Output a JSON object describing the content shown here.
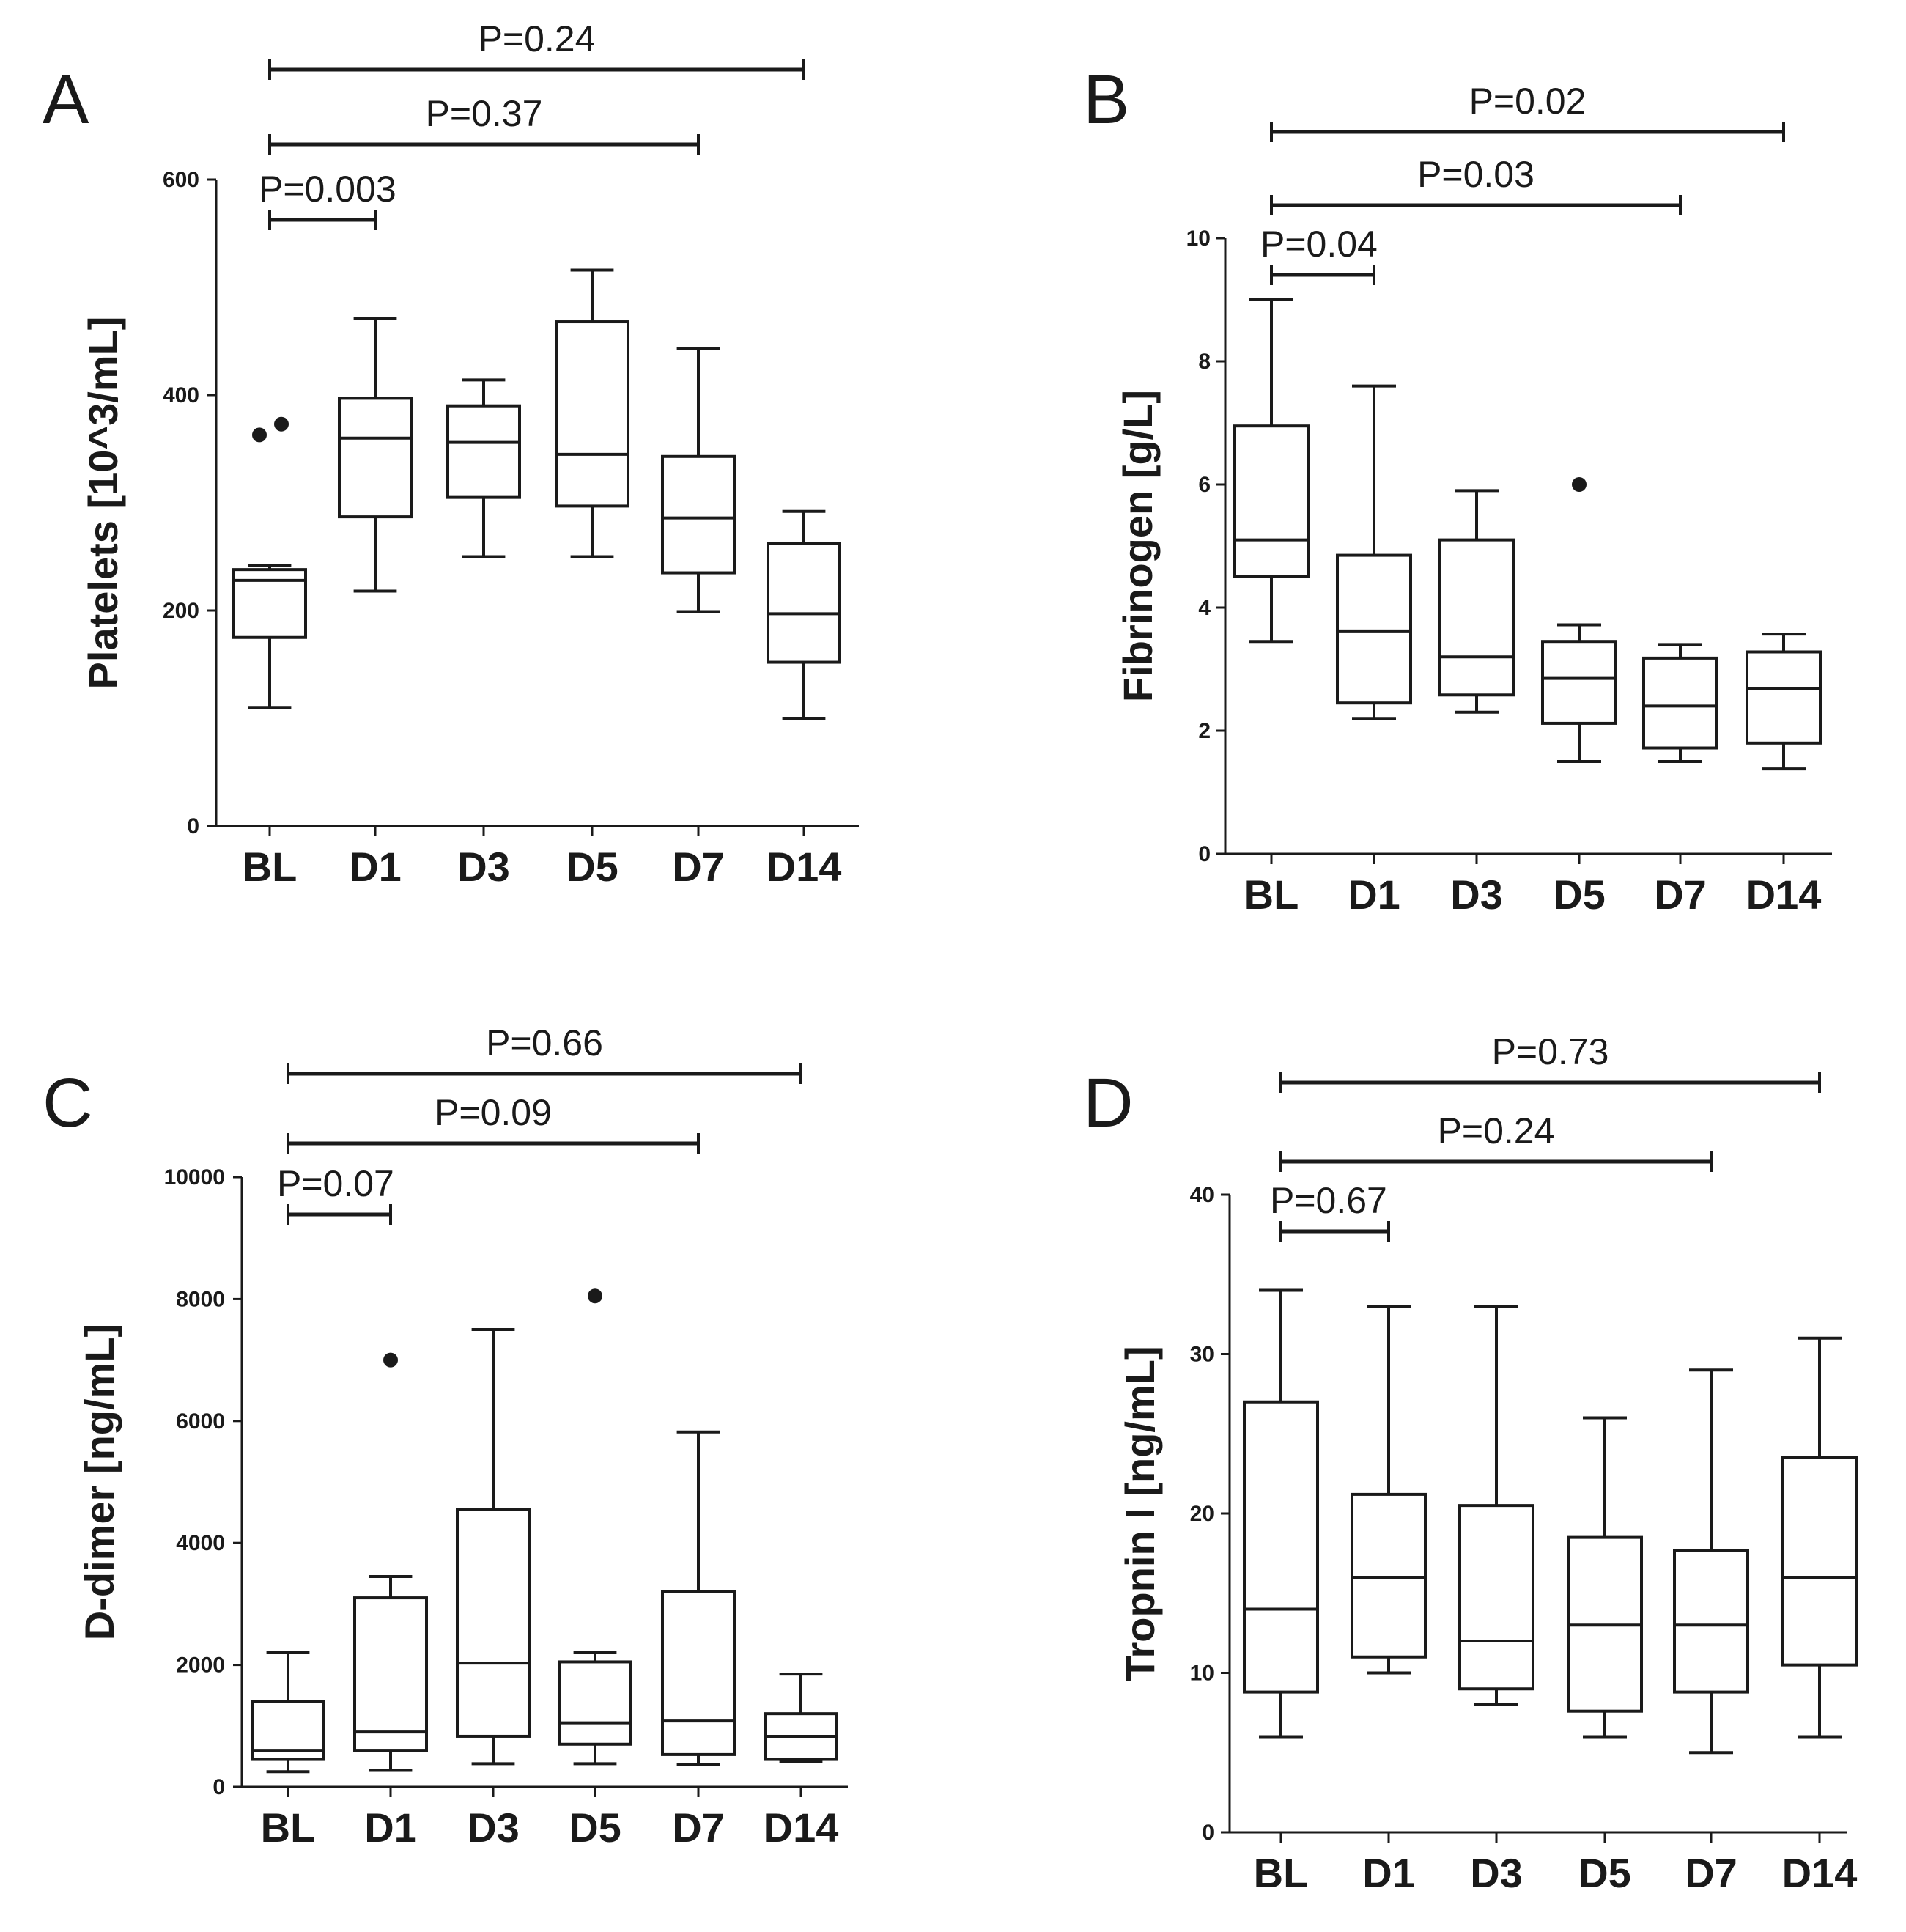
{
  "chart_data": [
    {
      "panel": "A",
      "type": "box",
      "ylabel": "Platelets [10^3/mL]",
      "ylim": [
        0,
        600
      ],
      "yticks": [
        0,
        200,
        400,
        600
      ],
      "categories": [
        "BL",
        "D1",
        "D3",
        "D5",
        "D7",
        "D14"
      ],
      "boxes": [
        {
          "min": 110,
          "q1": 175,
          "median": 228,
          "q3": 238,
          "max": 242,
          "outliers": [
            363,
            373
          ]
        },
        {
          "min": 218,
          "q1": 287,
          "median": 360,
          "q3": 397,
          "max": 471,
          "outliers": []
        },
        {
          "min": 250,
          "q1": 305,
          "median": 356,
          "q3": 390,
          "max": 414,
          "outliers": []
        },
        {
          "min": 250,
          "q1": 297,
          "median": 345,
          "q3": 468,
          "max": 516,
          "outliers": []
        },
        {
          "min": 199,
          "q1": 235,
          "median": 286,
          "q3": 343,
          "max": 443,
          "outliers": []
        },
        {
          "min": 100,
          "q1": 152,
          "median": 197,
          "q3": 262,
          "max": 292,
          "outliers": []
        }
      ],
      "comparisons": [
        {
          "from": "BL",
          "to": "D1",
          "label": "P=0.003"
        },
        {
          "from": "BL",
          "to": "D7",
          "label": "P=0.37"
        },
        {
          "from": "BL",
          "to": "D14",
          "label": "P=0.24"
        }
      ]
    },
    {
      "panel": "B",
      "type": "box",
      "ylabel": "Fibrinogen [g/L]",
      "ylim": [
        0,
        10
      ],
      "yticks": [
        0,
        2,
        4,
        6,
        8,
        10
      ],
      "categories": [
        "BL",
        "D1",
        "D3",
        "D5",
        "D7",
        "D14"
      ],
      "boxes": [
        {
          "min": 3.45,
          "q1": 4.5,
          "median": 5.1,
          "q3": 6.95,
          "max": 9.0,
          "outliers": []
        },
        {
          "min": 2.2,
          "q1": 2.45,
          "median": 3.62,
          "q3": 4.85,
          "max": 7.6,
          "outliers": []
        },
        {
          "min": 2.3,
          "q1": 2.58,
          "median": 3.2,
          "q3": 5.1,
          "max": 5.9,
          "outliers": []
        },
        {
          "min": 1.5,
          "q1": 2.12,
          "median": 2.85,
          "q3": 3.45,
          "max": 3.72,
          "outliers": [
            6.0
          ]
        },
        {
          "min": 1.5,
          "q1": 1.72,
          "median": 2.4,
          "q3": 3.18,
          "max": 3.4,
          "outliers": []
        },
        {
          "min": 1.38,
          "q1": 1.8,
          "median": 2.68,
          "q3": 3.28,
          "max": 3.57,
          "outliers": []
        }
      ],
      "comparisons": [
        {
          "from": "BL",
          "to": "D1",
          "label": "P=0.04"
        },
        {
          "from": "BL",
          "to": "D7",
          "label": "P=0.03"
        },
        {
          "from": "BL",
          "to": "D14",
          "label": "P=0.02"
        }
      ]
    },
    {
      "panel": "C",
      "type": "box",
      "ylabel": "D-dimer [ng/mL]",
      "ylim": [
        0,
        10000
      ],
      "yticks": [
        0,
        2000,
        4000,
        6000,
        8000,
        10000
      ],
      "categories": [
        "BL",
        "D1",
        "D3",
        "D5",
        "D7",
        "D14"
      ],
      "boxes": [
        {
          "min": 250,
          "q1": 450,
          "median": 600,
          "q3": 1400,
          "max": 2200,
          "outliers": []
        },
        {
          "min": 270,
          "q1": 600,
          "median": 900,
          "q3": 3100,
          "max": 3450,
          "outliers": [
            7000
          ]
        },
        {
          "min": 380,
          "q1": 830,
          "median": 2030,
          "q3": 4550,
          "max": 7500,
          "outliers": []
        },
        {
          "min": 380,
          "q1": 700,
          "median": 1050,
          "q3": 2050,
          "max": 2200,
          "outliers": [
            8050
          ]
        },
        {
          "min": 370,
          "q1": 530,
          "median": 1080,
          "q3": 3200,
          "max": 5820,
          "outliers": []
        },
        {
          "min": 420,
          "q1": 450,
          "median": 830,
          "q3": 1200,
          "max": 1850,
          "outliers": []
        }
      ],
      "comparisons": [
        {
          "from": "BL",
          "to": "D1",
          "label": "P=0.07"
        },
        {
          "from": "BL",
          "to": "D7",
          "label": "P=0.09"
        },
        {
          "from": "BL",
          "to": "D14",
          "label": "P=0.66"
        }
      ]
    },
    {
      "panel": "D",
      "type": "box",
      "ylabel": "Tropnin I [ng/mL]",
      "ylim": [
        0,
        40
      ],
      "yticks": [
        0,
        10,
        20,
        30,
        40
      ],
      "categories": [
        "BL",
        "D1",
        "D3",
        "D5",
        "D7",
        "D14"
      ],
      "boxes": [
        {
          "min": 6,
          "q1": 8.8,
          "median": 14,
          "q3": 27,
          "max": 34,
          "outliers": []
        },
        {
          "min": 10,
          "q1": 11,
          "median": 16,
          "q3": 21.2,
          "max": 33,
          "outliers": []
        },
        {
          "min": 8,
          "q1": 9,
          "median": 12,
          "q3": 20.5,
          "max": 33,
          "outliers": []
        },
        {
          "min": 6,
          "q1": 7.6,
          "median": 13,
          "q3": 18.5,
          "max": 26,
          "outliers": []
        },
        {
          "min": 5,
          "q1": 8.8,
          "median": 13,
          "q3": 17.7,
          "max": 29,
          "outliers": []
        },
        {
          "min": 6,
          "q1": 10.5,
          "median": 16,
          "q3": 23.5,
          "max": 31,
          "outliers": []
        }
      ],
      "comparisons": [
        {
          "from": "BL",
          "to": "D1",
          "label": "P=0.67"
        },
        {
          "from": "BL",
          "to": "D7",
          "label": "P=0.24"
        },
        {
          "from": "BL",
          "to": "D14",
          "label": "P=0.73"
        }
      ]
    }
  ]
}
